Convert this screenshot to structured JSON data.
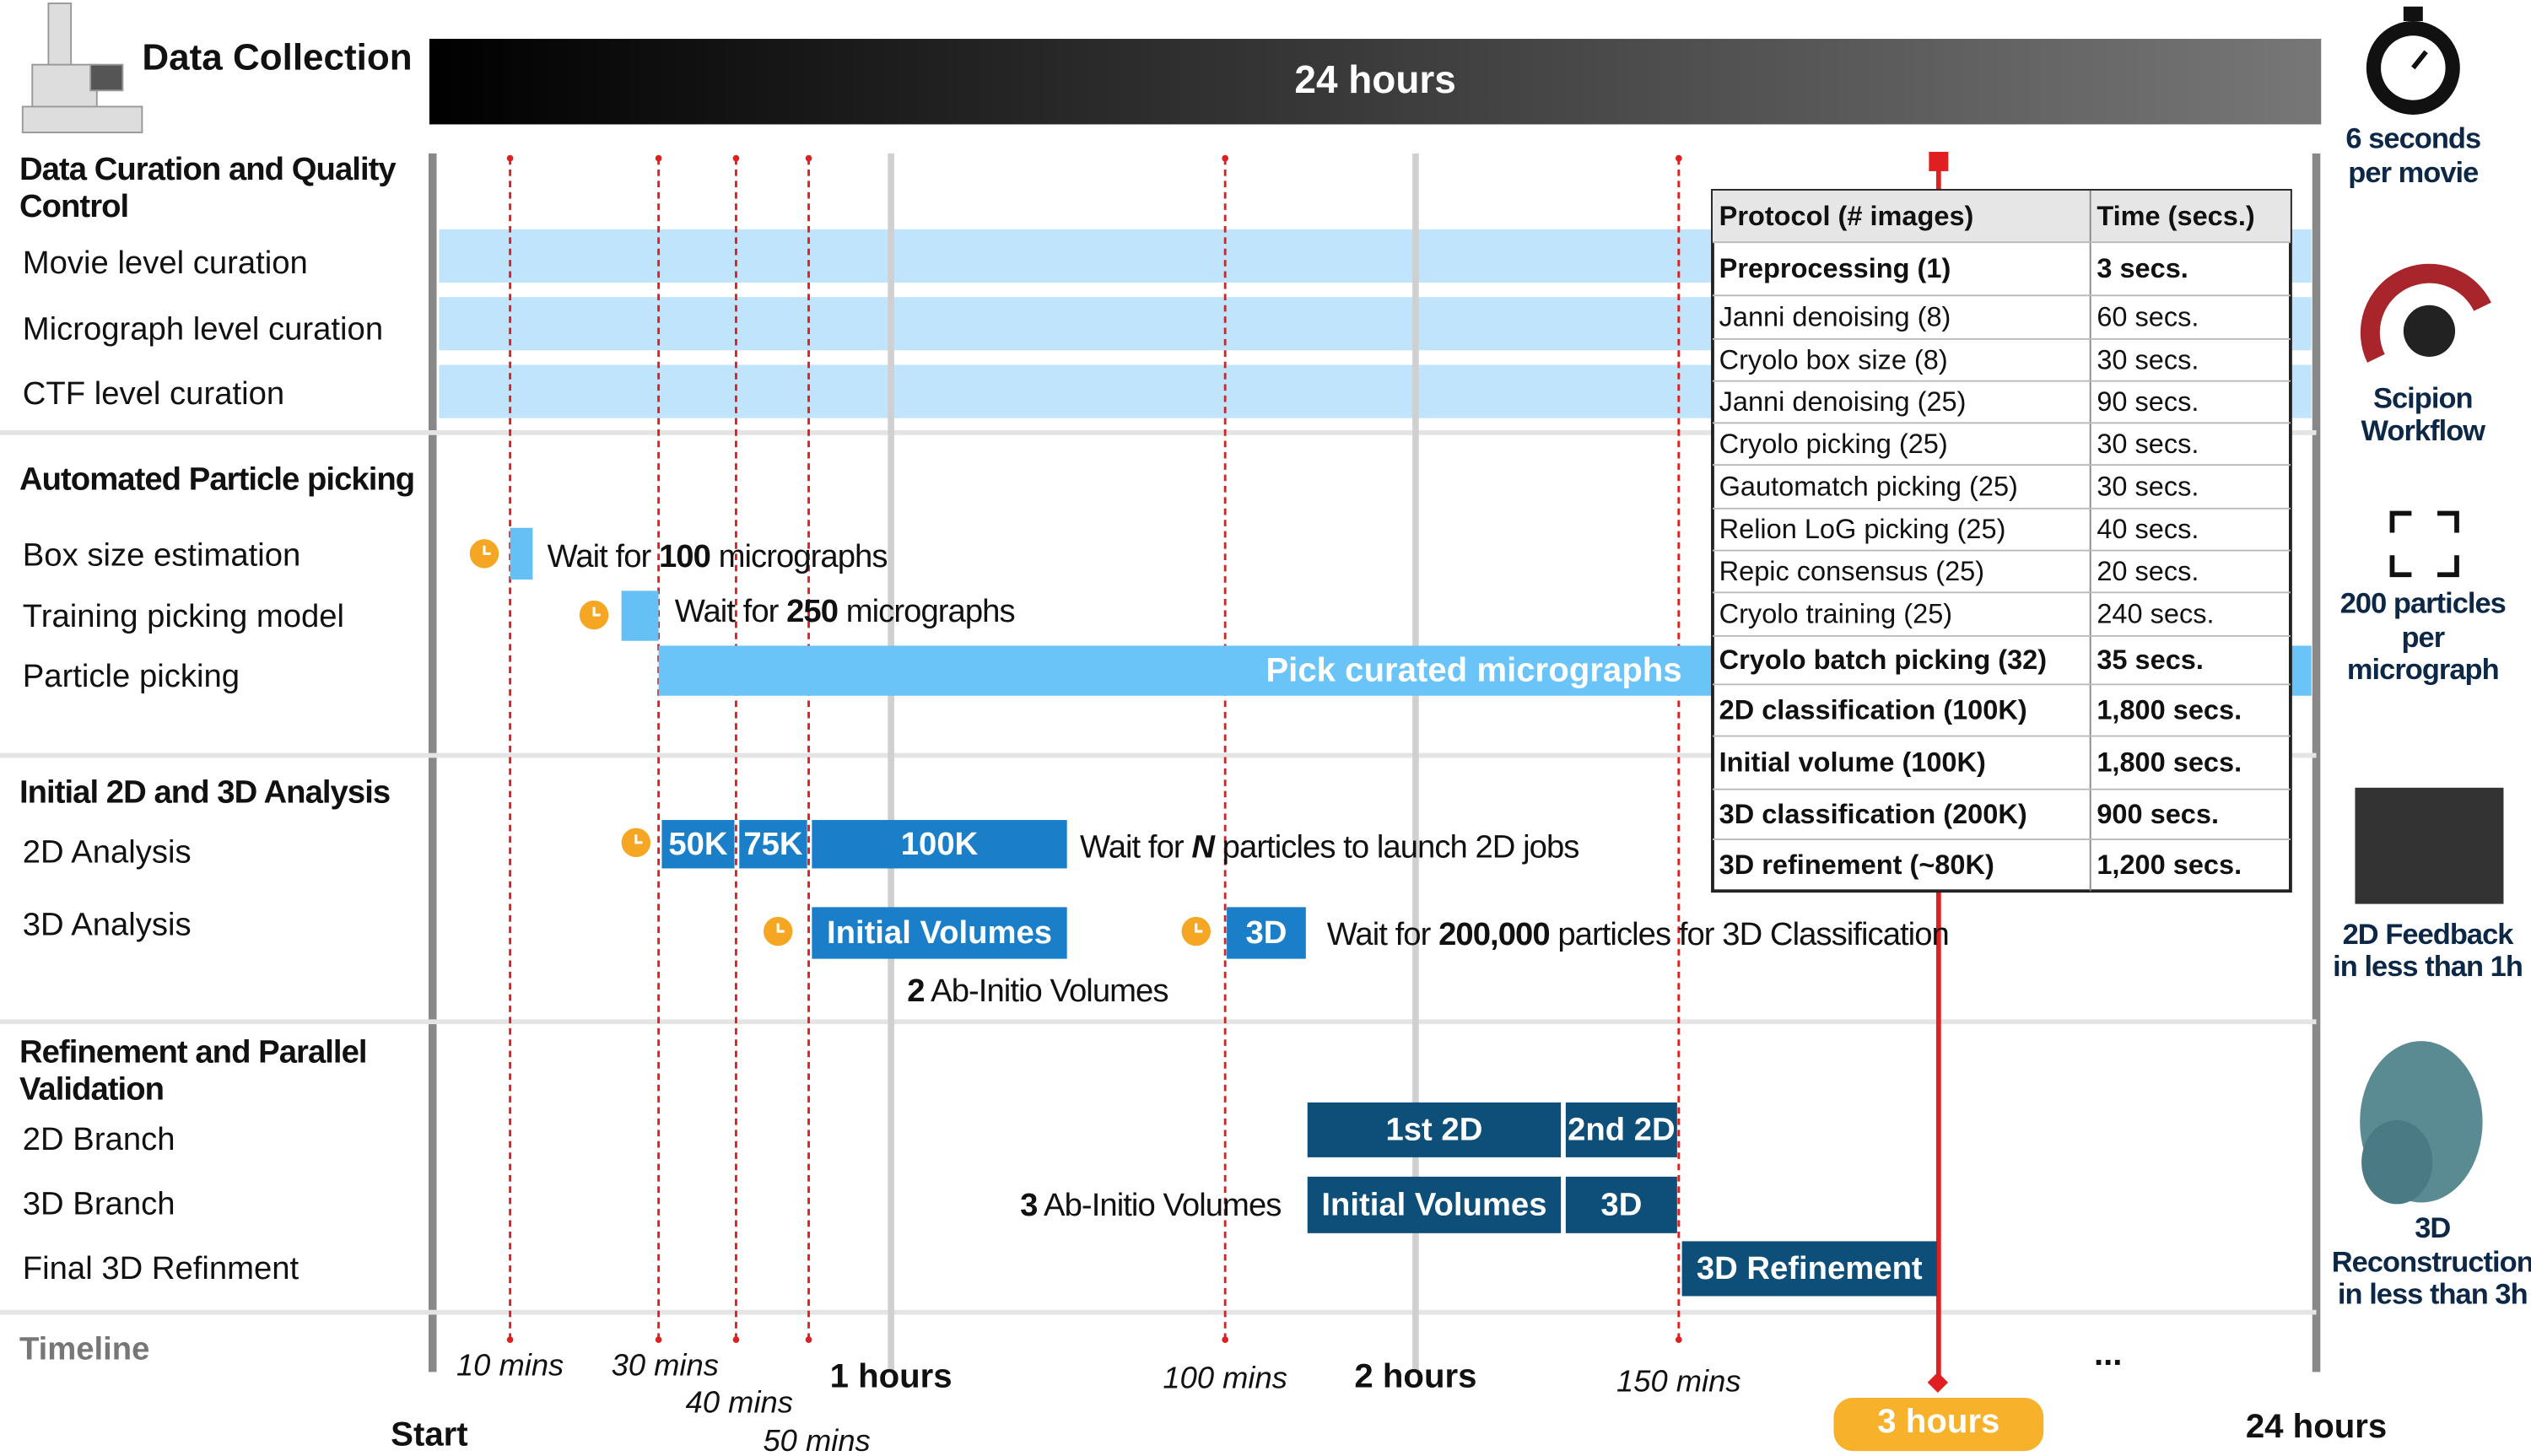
{
  "header": {
    "title": "Data Collection",
    "duration": "24 hours"
  },
  "sections": [
    {
      "title": [
        "Data Curation and Quality",
        "Control"
      ],
      "rows": [
        "Movie level curation",
        "Micrograph level curation",
        "CTF level curation"
      ]
    },
    {
      "title": [
        "Automated Particle picking"
      ],
      "rows": [
        "Box size estimation",
        "Training picking model",
        "Particle picking"
      ]
    },
    {
      "title": [
        "Initial 2D and 3D Analysis"
      ],
      "rows": [
        "2D Analysis",
        "3D Analysis"
      ]
    },
    {
      "title": [
        "Refinement and Parallel",
        "Validation"
      ],
      "rows": [
        "2D Branch",
        "3D Branch",
        "Final 3D Refinment"
      ]
    }
  ],
  "timeline": {
    "label": "Timeline",
    "marks": [
      "10 mins",
      "30 mins",
      "40 mins",
      "50 mins",
      "1 hours",
      "100 mins",
      "2 hours",
      "150 mins",
      "Start",
      "3 hours",
      "24 hours",
      "..."
    ]
  },
  "blocks": [
    "Pick curated micrographs",
    "50K",
    "75K",
    "100K",
    "Initial Volumes",
    "3D",
    "1st 2D",
    "2nd 2D",
    "Initial Volumes",
    "3D",
    "3D Refinement"
  ],
  "notes": [
    [
      "Wait for ",
      "100",
      " micrographs"
    ],
    [
      "Wait for ",
      "250",
      " micrographs"
    ],
    [
      "Wait for ",
      "N",
      " particles to launch 2D jobs"
    ],
    [
      "Wait for ",
      "200,000",
      " particles for 3D Classification"
    ],
    [
      "2",
      " Ab-Initio Volumes"
    ],
    [
      "3",
      " Ab-Initio Volumes"
    ]
  ],
  "table": {
    "header": [
      "Protocol (# images)",
      "Time (secs.)"
    ],
    "rows": [
      [
        "Preprocessing (1)",
        "3 secs."
      ],
      [
        "Janni denoising (8)",
        "60 secs."
      ],
      [
        "Cryolo box size (8)",
        "30 secs."
      ],
      [
        "Janni denoising (25)",
        "90 secs."
      ],
      [
        "Cryolo picking (25)",
        "30 secs."
      ],
      [
        "Gautomatch picking (25)",
        "30 secs."
      ],
      [
        "Relion LoG picking (25)",
        "40 secs."
      ],
      [
        "Repic consensus (25)",
        "20 secs."
      ],
      [
        "Cryolo training (25)",
        "240 secs."
      ],
      [
        "Cryolo batch picking (32)",
        "35 secs."
      ],
      [
        "2D classification (100K)",
        "1,800 secs."
      ],
      [
        "Initial volume (100K)",
        "1,800 secs."
      ],
      [
        "3D classification (200K)",
        "900 secs."
      ],
      [
        "3D refinement (~80K)",
        "1,200 secs."
      ]
    ]
  },
  "highlights": [
    [
      "6 seconds",
      "per movie"
    ],
    [
      "Scipion",
      "Workflow"
    ],
    [
      "200 particles",
      "per",
      "micrograph"
    ],
    [
      "2D Feedback",
      "in less than 1h"
    ],
    [
      "3D",
      "Reconstruction",
      "in less than 3h"
    ]
  ]
}
